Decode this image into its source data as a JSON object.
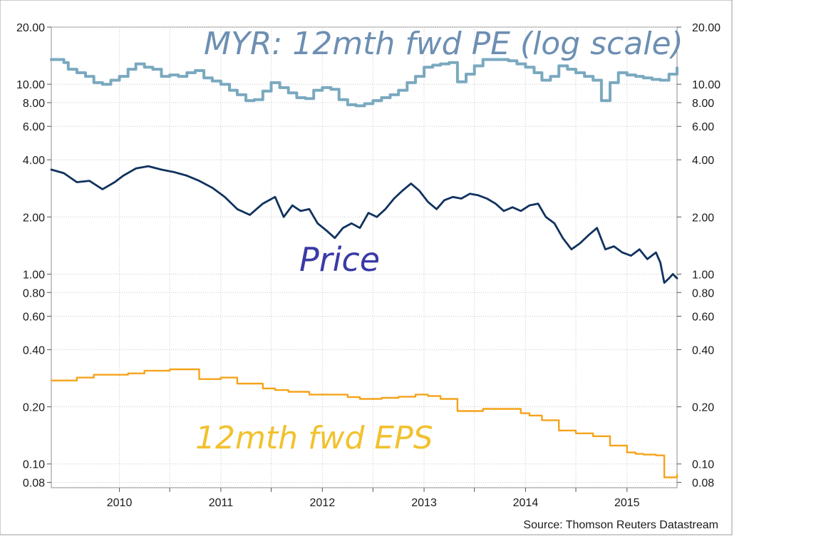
{
  "chart_data": {
    "type": "line",
    "yscale": "log",
    "ylim": [
      0.075,
      20
    ],
    "xlim": [
      "2009-05-01",
      "2015-06-30"
    ],
    "ytick_labels": [
      "20.00",
      "10.00",
      "8.00",
      "6.00",
      "4.00",
      "2.00",
      "1.00",
      "0.80",
      "0.60",
      "0.40",
      "0.20",
      "0.10",
      "0.08"
    ],
    "ytick_values": [
      20,
      10,
      8,
      6,
      4,
      2,
      1,
      0.8,
      0.6,
      0.4,
      0.2,
      0.1,
      0.08
    ],
    "xtick_labels": [
      "2010",
      "2011",
      "2012",
      "2013",
      "2014",
      "2015"
    ],
    "grid": true,
    "source": "Source: Thomson Reuters Datastream",
    "annotations": {
      "pe": "MYR: 12mth fwd PE (log scale)",
      "price": "Price",
      "eps": "12mth fwd EPS"
    },
    "colors": {
      "pe": "#7aa9bf",
      "price": "#10325e",
      "eps": "#f5a31a",
      "pe_annotation": "#6d8fb2",
      "price_annotation": "#3a3aa6",
      "eps_annotation": "#f2c12e"
    },
    "series": [
      {
        "key": "pe",
        "x": [
          "2009-05-01",
          "2009-06-15",
          "2009-07-01",
          "2009-08-01",
          "2009-09-01",
          "2009-10-01",
          "2009-11-01",
          "2009-12-01",
          "2010-01-01",
          "2010-02-01",
          "2010-03-01",
          "2010-04-01",
          "2010-05-01",
          "2010-06-01",
          "2010-07-01",
          "2010-08-01",
          "2010-09-01",
          "2010-10-01",
          "2010-11-01",
          "2010-12-01",
          "2011-01-01",
          "2011-02-01",
          "2011-03-01",
          "2011-04-01",
          "2011-05-01",
          "2011-06-01",
          "2011-07-01",
          "2011-08-01",
          "2011-09-01",
          "2011-10-01",
          "2011-11-01",
          "2011-12-01",
          "2012-01-01",
          "2012-02-01",
          "2012-03-01",
          "2012-04-01",
          "2012-05-01",
          "2012-06-01",
          "2012-07-01",
          "2012-08-01",
          "2012-09-01",
          "2012-10-01",
          "2012-11-01",
          "2012-12-01",
          "2013-01-01",
          "2013-02-01",
          "2013-03-01",
          "2013-04-01",
          "2013-05-01",
          "2013-06-01",
          "2013-07-01",
          "2013-08-01",
          "2013-09-01",
          "2013-10-01",
          "2013-11-01",
          "2013-12-01",
          "2014-01-01",
          "2014-02-01",
          "2014-03-01",
          "2014-04-01",
          "2014-05-01",
          "2014-06-01",
          "2014-07-01",
          "2014-08-01",
          "2014-09-01",
          "2014-10-01",
          "2014-11-01",
          "2014-12-01",
          "2015-01-01",
          "2015-02-01",
          "2015-03-01",
          "2015-04-01",
          "2015-05-01",
          "2015-06-01",
          "2015-06-30"
        ],
        "values": [
          13.5,
          13.0,
          12.0,
          11.5,
          11.0,
          10.2,
          10.0,
          10.5,
          11.0,
          12.0,
          12.8,
          12.3,
          12.0,
          11.0,
          11.2,
          11.0,
          11.5,
          11.8,
          10.8,
          10.4,
          10.0,
          9.3,
          8.8,
          8.2,
          8.3,
          9.2,
          10.2,
          9.6,
          9.0,
          8.5,
          8.4,
          9.3,
          9.6,
          9.4,
          8.3,
          7.8,
          7.7,
          7.9,
          8.2,
          8.5,
          8.8,
          9.3,
          10.2,
          11.0,
          12.3,
          12.6,
          12.8,
          13.0,
          10.3,
          11.3,
          12.5,
          13.5,
          13.5,
          13.5,
          13.3,
          12.8,
          12.3,
          11.5,
          10.5,
          11.0,
          12.5,
          12.0,
          11.5,
          11.0,
          10.5,
          8.2,
          10.2,
          11.5,
          11.2,
          11.0,
          10.8,
          10.6,
          10.5,
          11.3,
          12.2
        ]
      },
      {
        "key": "price",
        "x": [
          "2009-05-01",
          "2009-06-15",
          "2009-08-01",
          "2009-09-15",
          "2009-11-01",
          "2009-12-15",
          "2010-01-15",
          "2010-03-01",
          "2010-04-15",
          "2010-06-01",
          "2010-07-15",
          "2010-09-01",
          "2010-10-15",
          "2010-12-01",
          "2011-01-15",
          "2011-03-01",
          "2011-04-15",
          "2011-06-01",
          "2011-07-15",
          "2011-08-15",
          "2011-09-15",
          "2011-10-15",
          "2011-11-15",
          "2011-12-15",
          "2012-01-15",
          "2012-02-15",
          "2012-03-15",
          "2012-04-15",
          "2012-05-15",
          "2012-06-15",
          "2012-07-15",
          "2012-08-15",
          "2012-09-15",
          "2012-10-15",
          "2012-11-15",
          "2012-12-15",
          "2013-01-15",
          "2013-02-15",
          "2013-03-15",
          "2013-04-15",
          "2013-05-15",
          "2013-06-15",
          "2013-07-15",
          "2013-08-15",
          "2013-09-15",
          "2013-10-15",
          "2013-11-15",
          "2013-12-15",
          "2014-01-15",
          "2014-02-15",
          "2014-03-15",
          "2014-04-15",
          "2014-05-15",
          "2014-06-15",
          "2014-07-15",
          "2014-08-15",
          "2014-09-15",
          "2014-10-15",
          "2014-11-15",
          "2014-12-15",
          "2015-01-15",
          "2015-02-15",
          "2015-03-15",
          "2015-04-15",
          "2015-05-01",
          "2015-05-15",
          "2015-06-01",
          "2015-06-15",
          "2015-06-30"
        ],
        "values": [
          3.55,
          3.4,
          3.05,
          3.1,
          2.8,
          3.05,
          3.3,
          3.6,
          3.7,
          3.55,
          3.45,
          3.3,
          3.1,
          2.85,
          2.55,
          2.2,
          2.05,
          2.35,
          2.55,
          2.0,
          2.3,
          2.15,
          2.2,
          1.85,
          1.7,
          1.55,
          1.75,
          1.85,
          1.75,
          2.1,
          2.0,
          2.2,
          2.5,
          2.75,
          3.0,
          2.75,
          2.4,
          2.2,
          2.45,
          2.55,
          2.5,
          2.65,
          2.6,
          2.5,
          2.35,
          2.15,
          2.25,
          2.15,
          2.3,
          2.35,
          2.0,
          1.85,
          1.55,
          1.35,
          1.45,
          1.6,
          1.75,
          1.35,
          1.4,
          1.3,
          1.25,
          1.35,
          1.2,
          1.3,
          1.15,
          0.9,
          0.95,
          1.0,
          0.95
        ]
      },
      {
        "key": "eps",
        "x": [
          "2009-05-01",
          "2009-08-01",
          "2009-10-01",
          "2010-02-01",
          "2010-04-01",
          "2010-07-01",
          "2010-10-15",
          "2011-01-01",
          "2011-03-01",
          "2011-06-01",
          "2011-07-15",
          "2011-09-01",
          "2011-11-15",
          "2012-04-01",
          "2012-05-15",
          "2012-08-01",
          "2012-10-01",
          "2012-12-01",
          "2013-01-15",
          "2013-03-01",
          "2013-05-01",
          "2013-08-01",
          "2013-10-15",
          "2013-12-15",
          "2014-01-15",
          "2014-03-01",
          "2014-05-01",
          "2014-07-01",
          "2014-09-01",
          "2014-11-01",
          "2015-01-01",
          "2015-02-01",
          "2015-03-01",
          "2015-04-15",
          "2015-05-15",
          "2015-06-30"
        ],
        "values": [
          0.275,
          0.285,
          0.295,
          0.3,
          0.31,
          0.315,
          0.28,
          0.285,
          0.265,
          0.25,
          0.245,
          0.24,
          0.232,
          0.225,
          0.22,
          0.223,
          0.226,
          0.232,
          0.228,
          0.22,
          0.19,
          0.195,
          0.195,
          0.185,
          0.18,
          0.17,
          0.15,
          0.145,
          0.14,
          0.125,
          0.115,
          0.113,
          0.112,
          0.111,
          0.085,
          0.088
        ]
      }
    ]
  }
}
